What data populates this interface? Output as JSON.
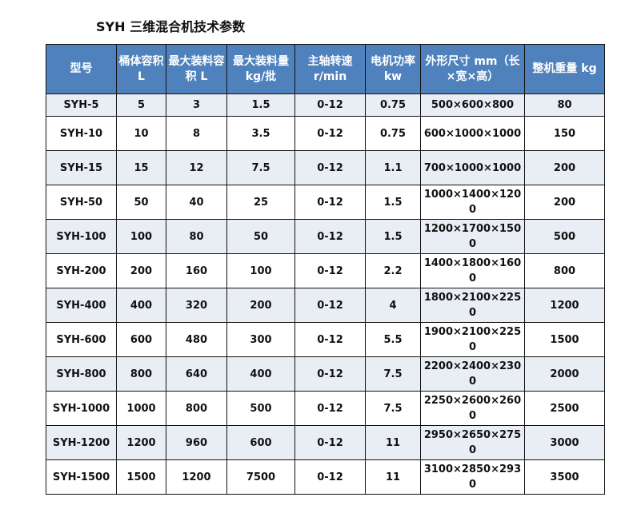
{
  "title": "SYH 三维混合机技术参数",
  "colors": {
    "header": "#4f81bd",
    "alt_row": "#e9edf4"
  },
  "headers": [
    "型号",
    "桶体容积 L",
    "最大装料容积 L",
    "最大装料量 kg/批",
    "主轴转速 r/min",
    "电机功率 kw",
    "外形尺寸 mm（长×宽×高）",
    "整机重量 kg"
  ],
  "rows": [
    [
      "SYH-5",
      "5",
      "3",
      "1.5",
      "0-12",
      "0.75",
      "500×600×800",
      "80"
    ],
    [
      "SYH-10",
      "10",
      "8",
      "3.5",
      "0-12",
      "0.75",
      "600×1000×1000",
      "150"
    ],
    [
      "SYH-15",
      "15",
      "12",
      "7.5",
      "0-12",
      "1.1",
      "700×1000×1000",
      "200"
    ],
    [
      "SYH-50",
      "50",
      "40",
      "25",
      "0-12",
      "1.5",
      "1000×1400×1200",
      "200"
    ],
    [
      "SYH-100",
      "100",
      "80",
      "50",
      "0-12",
      "1.5",
      "1200×1700×1500",
      "500"
    ],
    [
      "SYH-200",
      "200",
      "160",
      "100",
      "0-12",
      "2.2",
      "1400×1800×1600",
      "800"
    ],
    [
      "SYH-400",
      "400",
      "320",
      "200",
      "0-12",
      "4",
      "1800×2100×2250",
      "1200"
    ],
    [
      "SYH-600",
      "600",
      "480",
      "300",
      "0-12",
      "5.5",
      "1900×2100×2250",
      "1500"
    ],
    [
      "SYH-800",
      "800",
      "640",
      "400",
      "0-12",
      "7.5",
      "2200×2400×2300",
      "2000"
    ],
    [
      "SYH-1000",
      "1000",
      "800",
      "500",
      "0-12",
      "7.5",
      "2250×2600×2600",
      "2500"
    ],
    [
      "SYH-1200",
      "1200",
      "960",
      "600",
      "0-12",
      "11",
      "2950×2650×2750",
      "3000"
    ],
    [
      "SYH-1500",
      "1500",
      "1200",
      "7500",
      "0-12",
      "11",
      "3100×2850×2930",
      "3500"
    ]
  ]
}
